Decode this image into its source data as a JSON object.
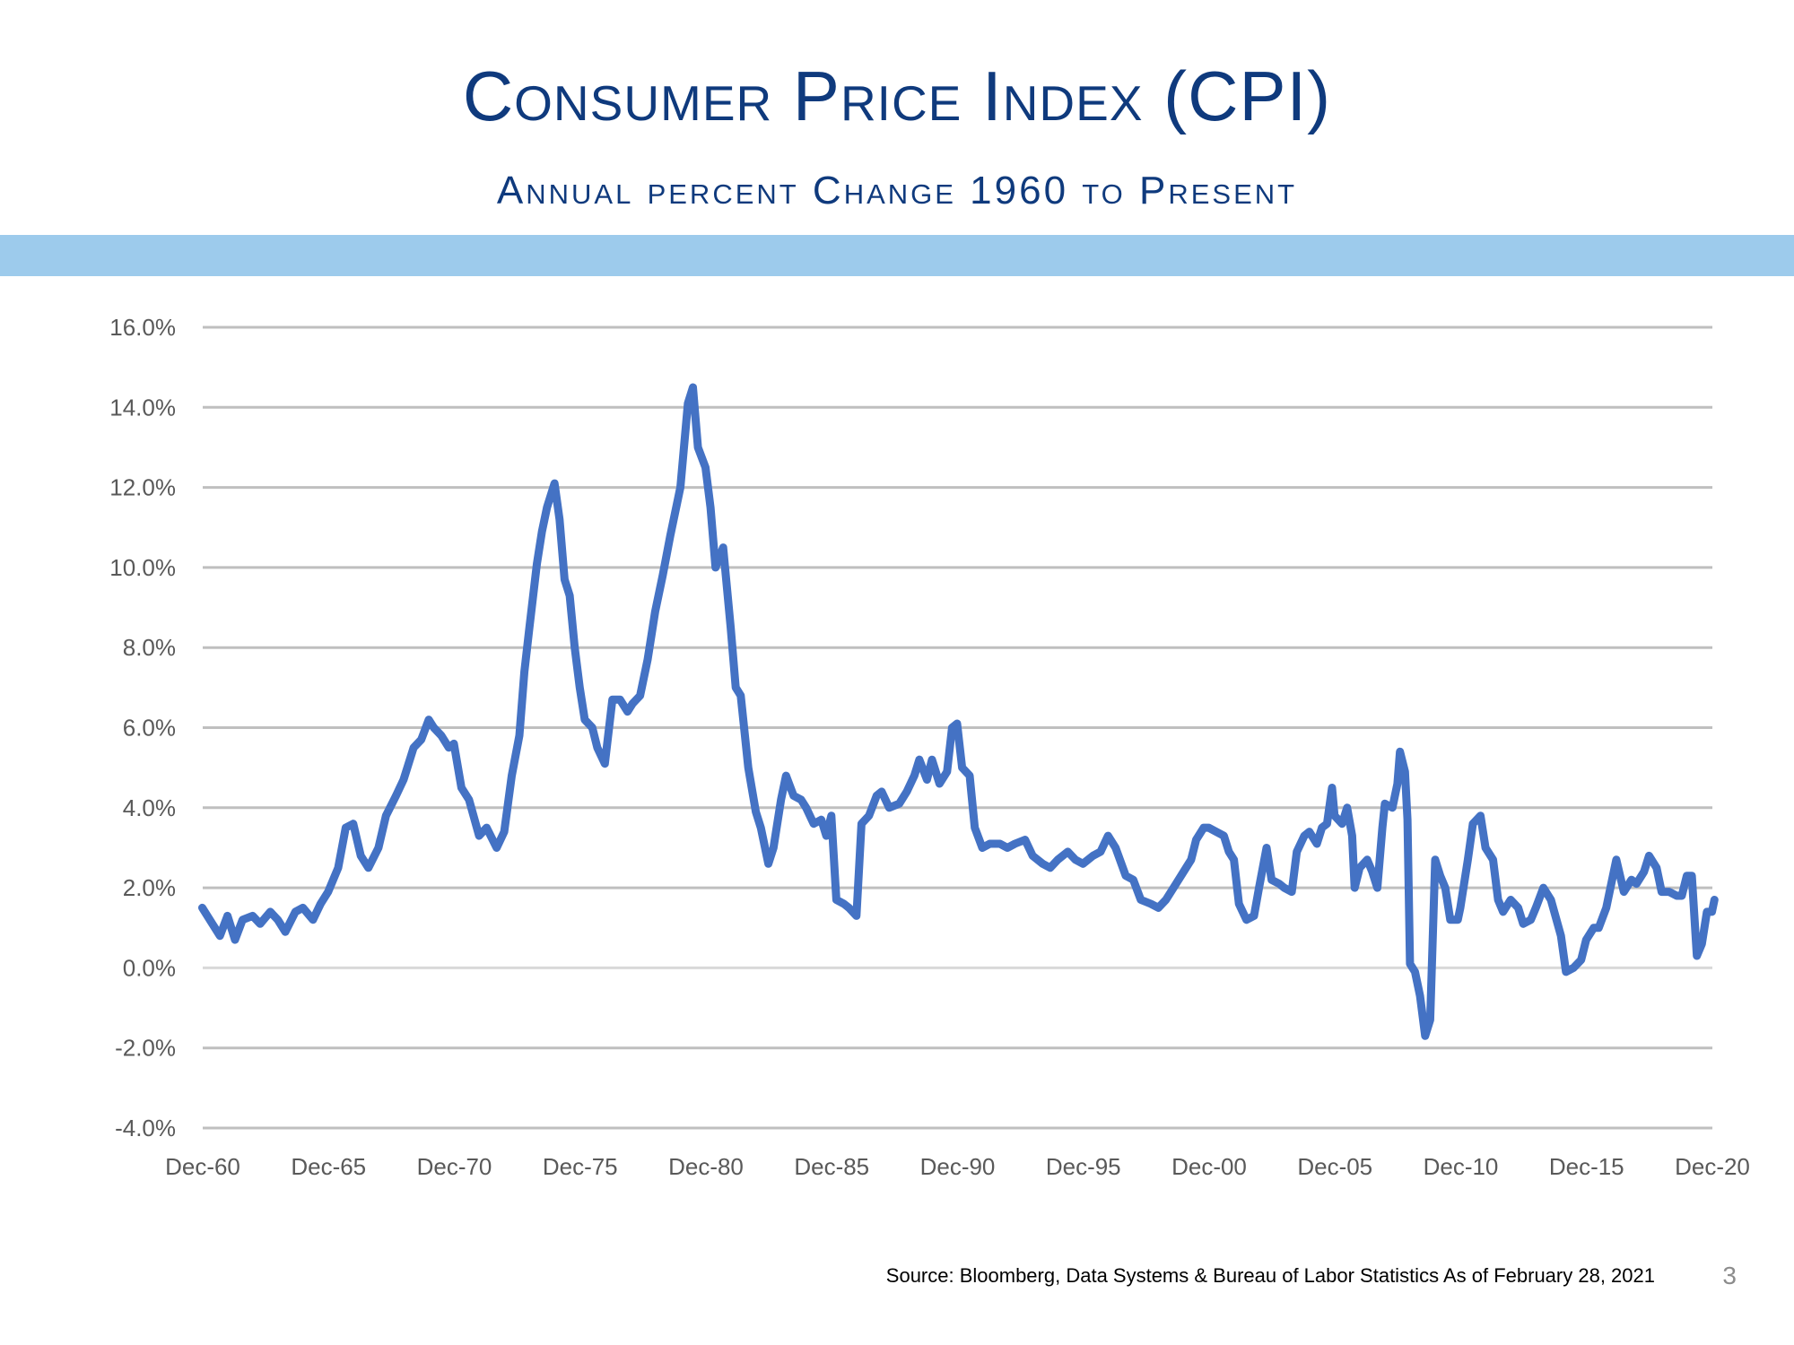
{
  "slide": {
    "title": "Consumer Price Index (CPI)",
    "subtitle": "Annual percent Change 1960 to Present",
    "source": "Source:  Bloomberg, Data Systems & Bureau of Labor Statistics As of February 28, 2021",
    "page_number": "3",
    "colors": {
      "title": "#0f3a7d",
      "band": "#9dcbec",
      "line": "#4472c4",
      "grid": "#bfbfbf"
    }
  },
  "chart_data": {
    "type": "line",
    "title": "",
    "xlabel": "",
    "ylabel": "",
    "ylim": [
      -4.0,
      16.0
    ],
    "xlim": [
      1960.917,
      2020.917
    ],
    "y_ticks": [
      {
        "value": -4.0,
        "label": "-4.0%"
      },
      {
        "value": -2.0,
        "label": "-2.0%"
      },
      {
        "value": 0.0,
        "label": "0.0%"
      },
      {
        "value": 2.0,
        "label": "2.0%"
      },
      {
        "value": 4.0,
        "label": "4.0%"
      },
      {
        "value": 6.0,
        "label": "6.0%"
      },
      {
        "value": 8.0,
        "label": "8.0%"
      },
      {
        "value": 10.0,
        "label": "10.0%"
      },
      {
        "value": 12.0,
        "label": "12.0%"
      },
      {
        "value": 14.0,
        "label": "14.0%"
      },
      {
        "value": 16.0,
        "label": "16.0%"
      }
    ],
    "x_ticks": [
      {
        "value": 1960.917,
        "label": "Dec-60"
      },
      {
        "value": 1965.917,
        "label": "Dec-65"
      },
      {
        "value": 1970.917,
        "label": "Dec-70"
      },
      {
        "value": 1975.917,
        "label": "Dec-75"
      },
      {
        "value": 1980.917,
        "label": "Dec-80"
      },
      {
        "value": 1985.917,
        "label": "Dec-85"
      },
      {
        "value": 1990.917,
        "label": "Dec-90"
      },
      {
        "value": 1995.917,
        "label": "Dec-95"
      },
      {
        "value": 2000.917,
        "label": "Dec-00"
      },
      {
        "value": 2005.917,
        "label": "Dec-05"
      },
      {
        "value": 2010.917,
        "label": "Dec-10"
      },
      {
        "value": 2015.917,
        "label": "Dec-15"
      },
      {
        "value": 2020.917,
        "label": "Dec-20"
      }
    ],
    "grid": true,
    "legend": "none",
    "series": [
      {
        "color": "#4472c4",
        "points": [
          [
            1960.9,
            1.5
          ],
          [
            1961.3,
            1.1
          ],
          [
            1961.6,
            0.8
          ],
          [
            1961.9,
            1.3
          ],
          [
            1962.2,
            0.7
          ],
          [
            1962.5,
            1.2
          ],
          [
            1962.9,
            1.3
          ],
          [
            1963.2,
            1.1
          ],
          [
            1963.6,
            1.4
          ],
          [
            1963.9,
            1.2
          ],
          [
            1964.2,
            0.9
          ],
          [
            1964.6,
            1.4
          ],
          [
            1964.9,
            1.5
          ],
          [
            1965.3,
            1.2
          ],
          [
            1965.6,
            1.6
          ],
          [
            1965.9,
            1.9
          ],
          [
            1966.3,
            2.5
          ],
          [
            1966.6,
            3.5
          ],
          [
            1966.9,
            3.6
          ],
          [
            1967.2,
            2.8
          ],
          [
            1967.5,
            2.5
          ],
          [
            1967.9,
            3.0
          ],
          [
            1968.2,
            3.8
          ],
          [
            1968.6,
            4.3
          ],
          [
            1968.9,
            4.7
          ],
          [
            1969.3,
            5.5
          ],
          [
            1969.6,
            5.7
          ],
          [
            1969.9,
            6.2
          ],
          [
            1970.1,
            6.0
          ],
          [
            1970.4,
            5.8
          ],
          [
            1970.7,
            5.5
          ],
          [
            1970.9,
            5.6
          ],
          [
            1971.2,
            4.5
          ],
          [
            1971.5,
            4.2
          ],
          [
            1971.9,
            3.3
          ],
          [
            1972.2,
            3.5
          ],
          [
            1972.6,
            3.0
          ],
          [
            1972.9,
            3.4
          ],
          [
            1973.2,
            4.8
          ],
          [
            1973.5,
            5.8
          ],
          [
            1973.7,
            7.4
          ],
          [
            1973.9,
            8.5
          ],
          [
            1974.2,
            10.1
          ],
          [
            1974.4,
            10.9
          ],
          [
            1974.6,
            11.5
          ],
          [
            1974.9,
            12.1
          ],
          [
            1975.1,
            11.2
          ],
          [
            1975.3,
            9.7
          ],
          [
            1975.5,
            9.3
          ],
          [
            1975.7,
            8.0
          ],
          [
            1975.9,
            7.0
          ],
          [
            1976.1,
            6.2
          ],
          [
            1976.4,
            6.0
          ],
          [
            1976.6,
            5.5
          ],
          [
            1976.9,
            5.1
          ],
          [
            1977.2,
            6.7
          ],
          [
            1977.5,
            6.7
          ],
          [
            1977.8,
            6.4
          ],
          [
            1978.0,
            6.6
          ],
          [
            1978.3,
            6.8
          ],
          [
            1978.6,
            7.7
          ],
          [
            1978.9,
            8.9
          ],
          [
            1979.2,
            9.8
          ],
          [
            1979.5,
            10.8
          ],
          [
            1979.9,
            12.0
          ],
          [
            1980.2,
            14.1
          ],
          [
            1980.4,
            14.5
          ],
          [
            1980.6,
            13.0
          ],
          [
            1980.9,
            12.5
          ],
          [
            1981.1,
            11.5
          ],
          [
            1981.3,
            10.0
          ],
          [
            1981.6,
            10.5
          ],
          [
            1981.9,
            8.5
          ],
          [
            1982.1,
            7.0
          ],
          [
            1982.3,
            6.8
          ],
          [
            1982.6,
            5.0
          ],
          [
            1982.9,
            3.9
          ],
          [
            1983.1,
            3.5
          ],
          [
            1983.4,
            2.6
          ],
          [
            1983.6,
            3.0
          ],
          [
            1983.9,
            4.2
          ],
          [
            1984.1,
            4.8
          ],
          [
            1984.4,
            4.3
          ],
          [
            1984.7,
            4.2
          ],
          [
            1984.9,
            4.0
          ],
          [
            1985.2,
            3.6
          ],
          [
            1985.5,
            3.7
          ],
          [
            1985.7,
            3.3
          ],
          [
            1985.9,
            3.8
          ],
          [
            1986.1,
            1.7
          ],
          [
            1986.4,
            1.6
          ],
          [
            1986.6,
            1.5
          ],
          [
            1986.9,
            1.3
          ],
          [
            1987.1,
            3.6
          ],
          [
            1987.4,
            3.8
          ],
          [
            1987.7,
            4.3
          ],
          [
            1987.9,
            4.4
          ],
          [
            1988.2,
            4.0
          ],
          [
            1988.6,
            4.1
          ],
          [
            1988.9,
            4.4
          ],
          [
            1989.2,
            4.8
          ],
          [
            1989.4,
            5.2
          ],
          [
            1989.7,
            4.7
          ],
          [
            1989.9,
            5.2
          ],
          [
            1990.2,
            4.6
          ],
          [
            1990.5,
            4.9
          ],
          [
            1990.7,
            6.0
          ],
          [
            1990.9,
            6.1
          ],
          [
            1991.1,
            5.0
          ],
          [
            1991.4,
            4.8
          ],
          [
            1991.6,
            3.5
          ],
          [
            1991.9,
            3.0
          ],
          [
            1992.2,
            3.1
          ],
          [
            1992.6,
            3.1
          ],
          [
            1992.9,
            3.0
          ],
          [
            1993.2,
            3.1
          ],
          [
            1993.6,
            3.2
          ],
          [
            1993.9,
            2.8
          ],
          [
            1994.3,
            2.6
          ],
          [
            1994.6,
            2.5
          ],
          [
            1994.9,
            2.7
          ],
          [
            1995.3,
            2.9
          ],
          [
            1995.6,
            2.7
          ],
          [
            1995.9,
            2.6
          ],
          [
            1996.3,
            2.8
          ],
          [
            1996.6,
            2.9
          ],
          [
            1996.9,
            3.3
          ],
          [
            1997.2,
            3.0
          ],
          [
            1997.6,
            2.3
          ],
          [
            1997.9,
            2.2
          ],
          [
            1998.2,
            1.7
          ],
          [
            1998.6,
            1.6
          ],
          [
            1998.9,
            1.5
          ],
          [
            1999.2,
            1.7
          ],
          [
            1999.6,
            2.1
          ],
          [
            1999.9,
            2.4
          ],
          [
            2000.2,
            2.7
          ],
          [
            2000.4,
            3.2
          ],
          [
            2000.7,
            3.5
          ],
          [
            2000.9,
            3.5
          ],
          [
            2001.2,
            3.4
          ],
          [
            2001.5,
            3.3
          ],
          [
            2001.7,
            2.9
          ],
          [
            2001.9,
            2.7
          ],
          [
            2002.1,
            1.6
          ],
          [
            2002.4,
            1.2
          ],
          [
            2002.7,
            1.3
          ],
          [
            2002.9,
            2.0
          ],
          [
            2003.2,
            3.0
          ],
          [
            2003.4,
            2.2
          ],
          [
            2003.7,
            2.1
          ],
          [
            2003.9,
            2.0
          ],
          [
            2004.2,
            1.9
          ],
          [
            2004.4,
            2.9
          ],
          [
            2004.7,
            3.3
          ],
          [
            2004.9,
            3.4
          ],
          [
            2005.2,
            3.1
          ],
          [
            2005.4,
            3.5
          ],
          [
            2005.6,
            3.6
          ],
          [
            2005.8,
            4.5
          ],
          [
            2005.9,
            3.8
          ],
          [
            2006.2,
            3.6
          ],
          [
            2006.4,
            4.0
          ],
          [
            2006.6,
            3.3
          ],
          [
            2006.7,
            2.0
          ],
          [
            2006.9,
            2.5
          ],
          [
            2007.2,
            2.7
          ],
          [
            2007.4,
            2.4
          ],
          [
            2007.6,
            2.0
          ],
          [
            2007.8,
            3.5
          ],
          [
            2007.9,
            4.1
          ],
          [
            2008.2,
            4.0
          ],
          [
            2008.4,
            4.6
          ],
          [
            2008.5,
            5.4
          ],
          [
            2008.7,
            4.9
          ],
          [
            2008.8,
            3.7
          ],
          [
            2008.9,
            0.1
          ],
          [
            2009.1,
            -0.1
          ],
          [
            2009.3,
            -0.7
          ],
          [
            2009.5,
            -1.7
          ],
          [
            2009.7,
            -1.3
          ],
          [
            2009.9,
            2.7
          ],
          [
            2010.1,
            2.3
          ],
          [
            2010.3,
            2.0
          ],
          [
            2010.5,
            1.2
          ],
          [
            2010.8,
            1.2
          ],
          [
            2010.9,
            1.5
          ],
          [
            2011.2,
            2.7
          ],
          [
            2011.4,
            3.6
          ],
          [
            2011.7,
            3.8
          ],
          [
            2011.9,
            3.0
          ],
          [
            2012.2,
            2.7
          ],
          [
            2012.4,
            1.7
          ],
          [
            2012.6,
            1.4
          ],
          [
            2012.9,
            1.7
          ],
          [
            2013.2,
            1.5
          ],
          [
            2013.4,
            1.1
          ],
          [
            2013.7,
            1.2
          ],
          [
            2013.9,
            1.5
          ],
          [
            2014.2,
            2.0
          ],
          [
            2014.5,
            1.7
          ],
          [
            2014.9,
            0.8
          ],
          [
            2015.1,
            -0.1
          ],
          [
            2015.4,
            0.0
          ],
          [
            2015.7,
            0.2
          ],
          [
            2015.9,
            0.7
          ],
          [
            2016.2,
            1.0
          ],
          [
            2016.4,
            1.0
          ],
          [
            2016.7,
            1.5
          ],
          [
            2016.9,
            2.1
          ],
          [
            2017.1,
            2.7
          ],
          [
            2017.4,
            1.9
          ],
          [
            2017.7,
            2.2
          ],
          [
            2017.9,
            2.1
          ],
          [
            2018.2,
            2.4
          ],
          [
            2018.4,
            2.8
          ],
          [
            2018.7,
            2.5
          ],
          [
            2018.9,
            1.9
          ],
          [
            2019.2,
            1.9
          ],
          [
            2019.5,
            1.8
          ],
          [
            2019.7,
            1.8
          ],
          [
            2019.9,
            2.3
          ],
          [
            2020.1,
            2.3
          ],
          [
            2020.3,
            0.3
          ],
          [
            2020.5,
            0.6
          ],
          [
            2020.7,
            1.4
          ],
          [
            2020.9,
            1.4
          ],
          [
            2021.0,
            1.7
          ]
        ]
      }
    ]
  }
}
